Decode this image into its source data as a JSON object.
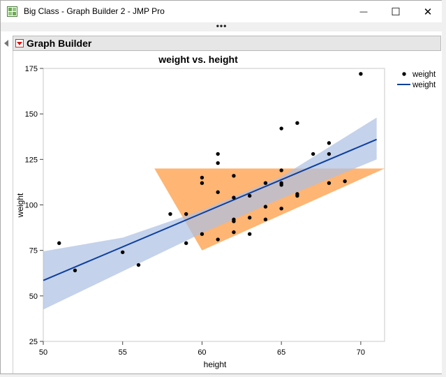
{
  "window": {
    "title": "Big Class - Graph Builder 2 - JMP Pro",
    "minimize_glyph": "—",
    "maximize_glyph": "☐",
    "close_glyph": "✕",
    "toolbar_grip": "•••"
  },
  "graph_builder": {
    "title": "Graph Builder"
  },
  "colors": {
    "points": "#000000",
    "fit_line": "#0d3f9e",
    "confidence_band": "#adc0e3",
    "shape_fill": "#ffa04c"
  },
  "icons": {
    "app": "graph-builder-icon",
    "hotspot": "red-triangle-menu-icon",
    "disclosure": "disclosure-triangle-icon"
  },
  "chart_data": {
    "type": "scatter",
    "title": "weight vs. height",
    "xlabel": "height",
    "ylabel": "weight",
    "xlim": [
      50,
      71.5
    ],
    "ylim": [
      25,
      175
    ],
    "xticks": [
      50,
      55,
      60,
      65,
      70
    ],
    "yticks": [
      25,
      50,
      75,
      100,
      125,
      150,
      175
    ],
    "grid": false,
    "legend_placement": "right",
    "legend": [
      {
        "label": "weight",
        "kind": "point"
      },
      {
        "label": "weight",
        "kind": "line"
      }
    ],
    "series": [
      {
        "name": "weight",
        "points": [
          [
            51,
            79
          ],
          [
            52,
            64
          ],
          [
            55,
            74
          ],
          [
            56,
            67
          ],
          [
            58,
            95
          ],
          [
            59,
            79
          ],
          [
            59,
            95
          ],
          [
            60,
            84
          ],
          [
            60,
            112
          ],
          [
            60,
            115
          ],
          [
            61,
            81
          ],
          [
            61,
            107
          ],
          [
            61,
            123
          ],
          [
            61,
            128
          ],
          [
            62,
            85
          ],
          [
            62,
            91
          ],
          [
            62,
            92
          ],
          [
            62,
            104
          ],
          [
            62,
            116
          ],
          [
            63,
            84
          ],
          [
            63,
            93
          ],
          [
            63,
            105
          ],
          [
            64,
            92
          ],
          [
            64,
            99
          ],
          [
            64,
            112
          ],
          [
            65,
            98
          ],
          [
            65,
            111
          ],
          [
            65,
            112
          ],
          [
            65,
            119
          ],
          [
            65,
            142
          ],
          [
            66,
            105
          ],
          [
            66,
            106
          ],
          [
            66,
            145
          ],
          [
            67,
            128
          ],
          [
            68,
            112
          ],
          [
            68,
            128
          ],
          [
            68,
            134
          ],
          [
            69,
            113
          ],
          [
            70,
            172
          ]
        ]
      }
    ],
    "fit_line": {
      "x": [
        50,
        71
      ],
      "y": [
        58.5,
        136
      ]
    },
    "confidence_band": {
      "x": [
        50,
        55,
        60,
        65,
        71
      ],
      "upper": [
        74.5,
        82,
        97,
        115.5,
        148
      ],
      "lower": [
        42.5,
        63.5,
        84.5,
        103.5,
        125
      ]
    },
    "overlay_polygon": [
      [
        57,
        120
      ],
      [
        71.5,
        120
      ],
      [
        60,
        75
      ]
    ]
  }
}
